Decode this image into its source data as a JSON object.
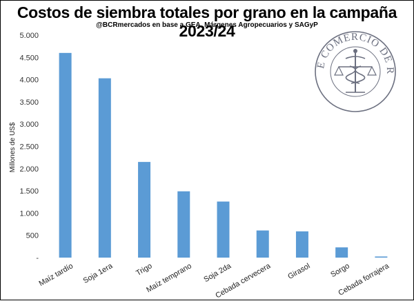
{
  "chart_data": {
    "type": "bar",
    "title": "Costos de siembra totales por grano en la campaña 2023/24",
    "subtitle": "@BCRmercados en base a GEA, Márgenes Agropecuarios y SAGyP",
    "ylabel": "Millones de US$",
    "xlabel": "",
    "ylim": [
      0,
      5000
    ],
    "yticks": [
      0,
      500,
      1000,
      1500,
      2000,
      2500,
      3000,
      3500,
      4000,
      4500,
      5000
    ],
    "ytick_labels": [
      "-",
      "500",
      "1.000",
      "1.500",
      "2.000",
      "2.500",
      "3.000",
      "3.500",
      "4.000",
      "4.500",
      "5.000"
    ],
    "categories": [
      "Maíz tardío",
      "Soja 1era",
      "Trigo",
      "Maíz temprano",
      "Soja 2da",
      "Cebada cervecera",
      "Girasol",
      "Sorgo",
      "Cebada forrajera"
    ],
    "values": [
      4600,
      4030,
      2150,
      1490,
      1260,
      610,
      590,
      230,
      25
    ],
    "bar_color": "#5b9bd5",
    "grid": false,
    "legend": false
  },
  "logo": {
    "text": "BOLSA DE COMERCIO DE ROSARIO",
    "color": "#6b6f7f"
  }
}
